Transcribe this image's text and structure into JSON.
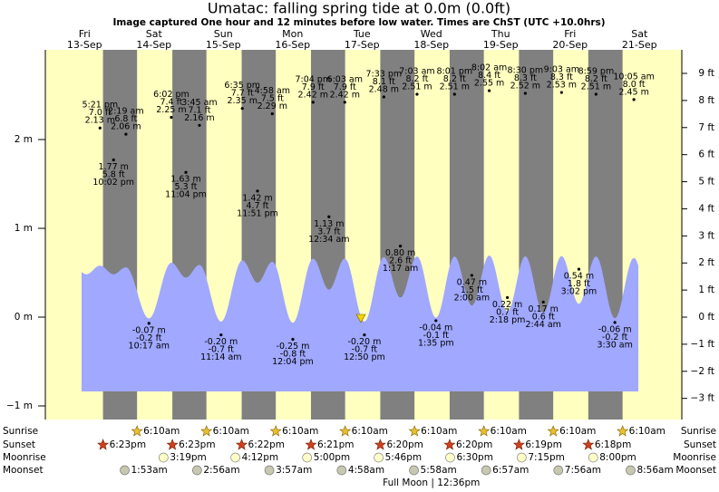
{
  "chart_data": {
    "type": "tide",
    "title": "Umatac: falling  spring tide at 0.0m (0.0ft)",
    "subtitle": "Image captured One hour and 12 minutes before low water. Times are ChST (UTC +10.0hrs)",
    "ylim": [
      -1.153,
      3.01
    ],
    "yticks": [
      {
        "value": -1,
        "label": "−1 m"
      },
      {
        "value": 0,
        "label": "0 m"
      },
      {
        "value": 1,
        "label": "1 m"
      },
      {
        "value": 2,
        "label": "2 m"
      }
    ],
    "y2lim": [
      -3.78,
      9.87
    ],
    "y2ticks": [
      {
        "value": -3,
        "label": "−3 ft"
      },
      {
        "value": -2,
        "label": "−2 ft"
      },
      {
        "value": -1,
        "label": "−1 ft"
      },
      {
        "value": 0,
        "label": "0 ft"
      },
      {
        "value": 1,
        "label": "1 ft"
      },
      {
        "value": 2,
        "label": "2 ft"
      },
      {
        "value": 3,
        "label": "3 ft"
      },
      {
        "value": 4,
        "label": "4 ft"
      },
      {
        "value": 5,
        "label": "5 ft"
      },
      {
        "value": 6,
        "label": "6 ft"
      },
      {
        "value": 7,
        "label": "7 ft"
      },
      {
        "value": 8,
        "label": "8 ft"
      },
      {
        "value": 9,
        "label": "9 ft"
      }
    ],
    "row_labels": [
      "Sunrise",
      "Sunset",
      "Moonrise",
      "Moonset"
    ],
    "colors": {
      "day": "#ffffc0",
      "night": "#808080",
      "tide": "#a0a8ff",
      "day_label": "#e00000"
    },
    "days": [
      {
        "name": "Fri",
        "date": "13-Sep",
        "sunrise": null,
        "sunset": "6:23pm",
        "moonrise": null,
        "moonset": null,
        "tides": [
          {
            "time": "5:21 pm",
            "m": 2.13,
            "m_label": "2.13 m",
            "ft_label": "7.0 ft"
          },
          {
            "time": "10:02 pm",
            "m": 1.77,
            "m_label": "1.77 m",
            "ft_label": "5.8 ft"
          }
        ]
      },
      {
        "name": "Sat",
        "date": "14-Sep",
        "sunrise": "6:10am",
        "sunset": "6:23pm",
        "moonrise": "3:19pm",
        "moonset": "1:53am",
        "tides": [
          {
            "time": "2:19 am",
            "m": 2.06,
            "m_label": "2.06 m",
            "ft_label": "6.8 ft"
          },
          {
            "time": "10:17 am",
            "m": -0.07,
            "m_label": "-0.07 m",
            "ft_label": "-0.2 ft"
          },
          {
            "time": "6:02 pm",
            "m": 2.25,
            "m_label": "2.25 m",
            "ft_label": "7.4 ft"
          },
          {
            "time": "11:04 pm",
            "m": 1.63,
            "m_label": "1.63 m",
            "ft_label": "5.3 ft"
          }
        ]
      },
      {
        "name": "Sun",
        "date": "15-Sep",
        "sunrise": "6:10am",
        "sunset": "6:22pm",
        "moonrise": "4:12pm",
        "moonset": "2:56am",
        "tides": [
          {
            "time": "3:45 am",
            "m": 2.16,
            "m_label": "2.16 m",
            "ft_label": "7.1 ft"
          },
          {
            "time": "11:14 am",
            "m": -0.2,
            "m_label": "-0.20 m",
            "ft_label": "-0.7 ft"
          },
          {
            "time": "6:35 pm",
            "m": 2.35,
            "m_label": "2.35 m",
            "ft_label": "7.7 ft"
          },
          {
            "time": "11:51 pm",
            "m": 1.42,
            "m_label": "1.42 m",
            "ft_label": "4.7 ft"
          }
        ]
      },
      {
        "name": "Mon",
        "date": "16-Sep",
        "sunrise": "6:10am",
        "sunset": "6:21pm",
        "moonrise": "5:00pm",
        "moonset": "3:57am",
        "tides": [
          {
            "time": "4:58 am",
            "m": 2.29,
            "m_label": "2.29 m",
            "ft_label": "7.5 ft"
          },
          {
            "time": "12:04 pm",
            "m": -0.25,
            "m_label": "-0.25 m",
            "ft_label": "-0.8 ft"
          },
          {
            "time": "7:04 pm",
            "m": 2.42,
            "m_label": "2.42 m",
            "ft_label": "7.9 ft"
          }
        ]
      },
      {
        "name": "Tue",
        "date": "17-Sep",
        "sunrise": "6:10am",
        "sunset": "6:20pm",
        "moonrise": "5:46pm",
        "moonset": "4:58am",
        "tides": [
          {
            "time": "12:34 am",
            "m": 1.13,
            "m_label": "1.13 m",
            "ft_label": "3.7 ft"
          },
          {
            "time": "6:03 am",
            "m": 2.42,
            "m_label": "2.42 m",
            "ft_label": "7.9 ft"
          },
          {
            "time": "12:50 pm",
            "m": -0.2,
            "m_label": "-0.20 m",
            "ft_label": "-0.7 ft"
          },
          {
            "time": "7:33 pm",
            "m": 2.48,
            "m_label": "2.48 m",
            "ft_label": "8.1 ft"
          }
        ]
      },
      {
        "name": "Wed",
        "date": "18-Sep",
        "sunrise": "6:10am",
        "sunset": "6:20pm",
        "moonrise": "6:30pm",
        "moonset": "5:58am",
        "moon_phase": "Full Moon | 12:36pm",
        "tides": [
          {
            "time": "1:17 am",
            "m": 0.8,
            "m_label": "0.80 m",
            "ft_label": "2.6 ft"
          },
          {
            "time": "7:03 am",
            "m": 2.51,
            "m_label": "2.51 m",
            "ft_label": "8.2 ft"
          },
          {
            "time": "1:35 pm",
            "m": -0.04,
            "m_label": "-0.04 m",
            "ft_label": "-0.1 ft"
          },
          {
            "time": "8:01 pm",
            "m": 2.51,
            "m_label": "2.51 m",
            "ft_label": "8.2 ft"
          }
        ]
      },
      {
        "name": "Thu",
        "date": "19-Sep",
        "sunrise": "6:10am",
        "sunset": "6:19pm",
        "moonrise": "7:15pm",
        "moonset": "6:57am",
        "tides": [
          {
            "time": "2:00 am",
            "m": 0.47,
            "m_label": "0.47 m",
            "ft_label": "1.5 ft"
          },
          {
            "time": "8:02 am",
            "m": 2.55,
            "m_label": "2.55 m",
            "ft_label": "8.4 ft"
          },
          {
            "time": "2:18 pm",
            "m": 0.22,
            "m_label": "0.22 m",
            "ft_label": "0.7 ft"
          },
          {
            "time": "8:30 pm",
            "m": 2.52,
            "m_label": "2.52 m",
            "ft_label": "8.3 ft"
          }
        ]
      },
      {
        "name": "Fri",
        "date": "20-Sep",
        "sunrise": "6:10am",
        "sunset": "6:18pm",
        "moonrise": "8:00pm",
        "moonset": "7:56am",
        "tides": [
          {
            "time": "2:44 am",
            "m": 0.17,
            "m_label": "0.17 m",
            "ft_label": "0.6 ft"
          },
          {
            "time": "9:03 am",
            "m": 2.53,
            "m_label": "2.53 m",
            "ft_label": "8.3 ft"
          },
          {
            "time": "3:02 pm",
            "m": 0.54,
            "m_label": "0.54 m",
            "ft_label": "1.8 ft"
          },
          {
            "time": "8:59 pm",
            "m": 2.51,
            "m_label": "2.51 m",
            "ft_label": "8.2 ft"
          }
        ]
      },
      {
        "name": "Sat",
        "date": "21-Sep",
        "sunrise": "6:10am",
        "sunset": null,
        "moonrise": null,
        "moonset": "8:56am",
        "tides": [
          {
            "time": "3:30 am",
            "m": -0.06,
            "m_label": "-0.06 m",
            "ft_label": "-0.2 ft"
          },
          {
            "time": "10:05 am",
            "m": 2.45,
            "m_label": "2.45 m",
            "ft_label": "8.0 ft"
          }
        ]
      }
    ]
  }
}
